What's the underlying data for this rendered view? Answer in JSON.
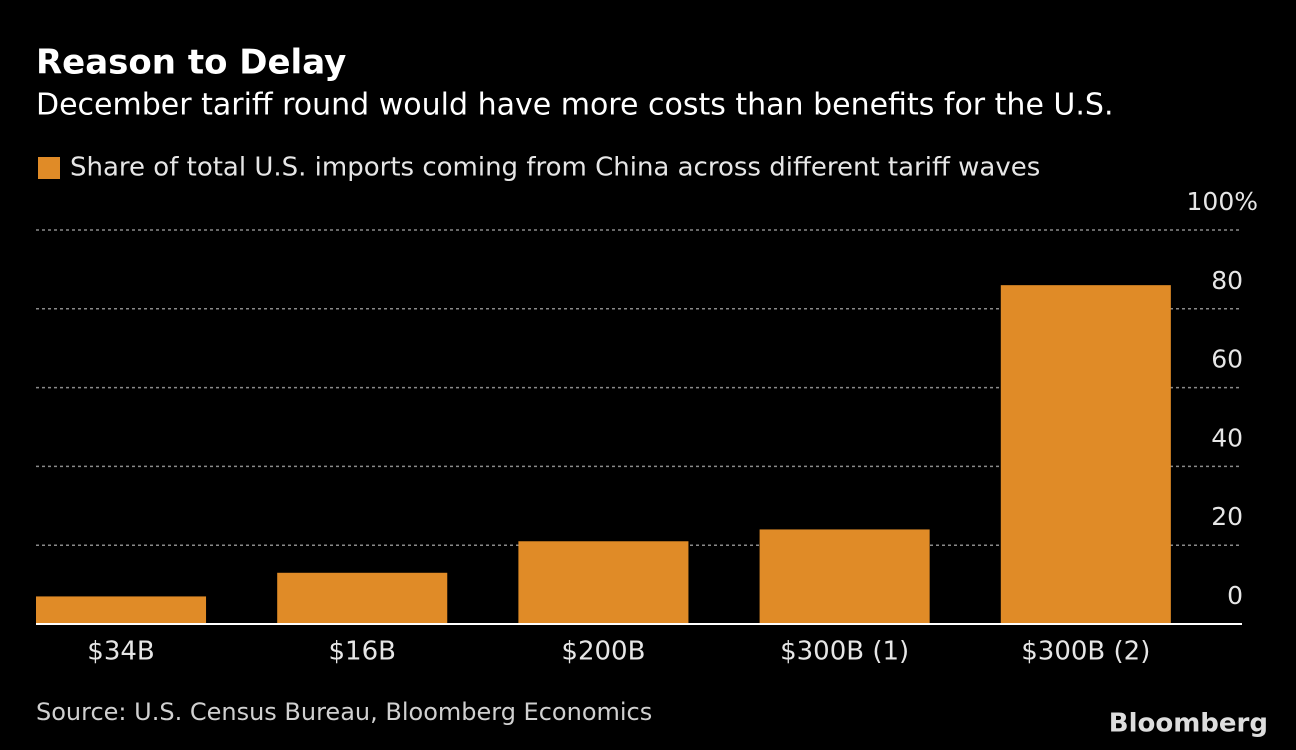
{
  "chart_data": {
    "type": "bar",
    "title": "Reason to Delay",
    "subtitle": "December tariff round would have more costs than benefits for the U.S.",
    "categories": [
      "$34B",
      "$16B",
      "$200B",
      "$300B (1)",
      "$300B (2)"
    ],
    "series": [
      {
        "name": "Share of total U.S. imports coming from China across different tariff waves",
        "color": "#e08b27",
        "values": [
          7,
          13,
          21,
          24,
          86
        ]
      }
    ],
    "ylim": [
      0,
      100
    ],
    "yticks": [
      0,
      20,
      40,
      60,
      80,
      {
        "value": 100,
        "label": "100%"
      }
    ],
    "grid": true,
    "source": "Source: U.S. Census Bureau, Bloomberg Economics",
    "brand": "Bloomberg"
  }
}
